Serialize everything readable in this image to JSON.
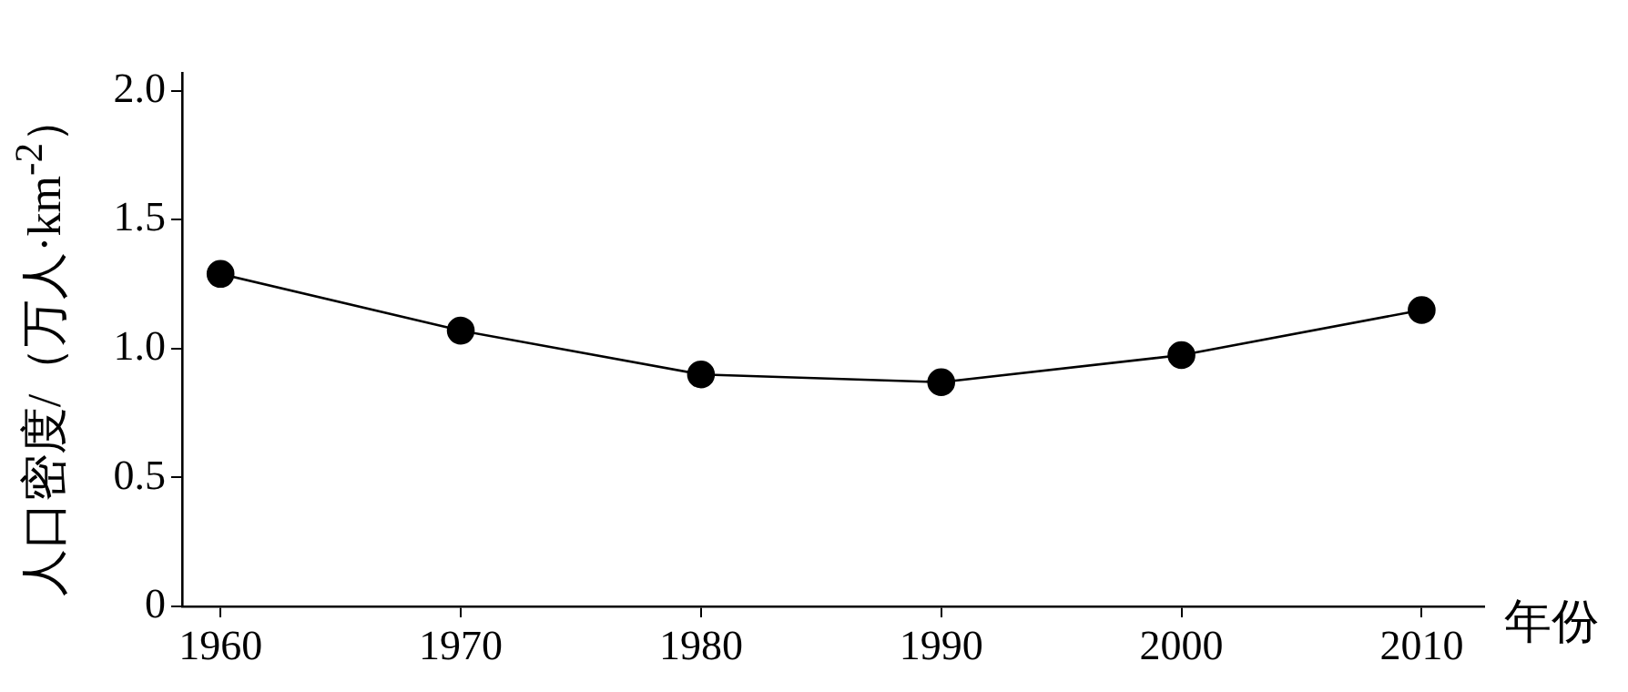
{
  "chart_data": {
    "type": "line",
    "xlabel": "年份",
    "ylabel": "人口密度/（万人·km$^{-2}$）",
    "x": [
      1960,
      1970,
      1980,
      1990,
      2000,
      2010
    ],
    "series": [
      {
        "color": "#000000",
        "values": [
          1.29,
          1.07,
          0.9,
          0.87,
          0.975,
          1.15
        ]
      }
    ],
    "xlim": [
      1958.4,
      2012.6
    ],
    "xticks": [
      1960,
      1970,
      1980,
      1990,
      2000,
      2010
    ],
    "ylim": [
      0,
      2.07
    ],
    "yticks": [
      0,
      0.5,
      {
        "value": 1,
        "label": "1.0"
      },
      1.5,
      {
        "value": 2,
        "label": "2.0"
      }
    ],
    "grid": false,
    "legend": false,
    "marker": "circle",
    "line_style": "solid"
  }
}
